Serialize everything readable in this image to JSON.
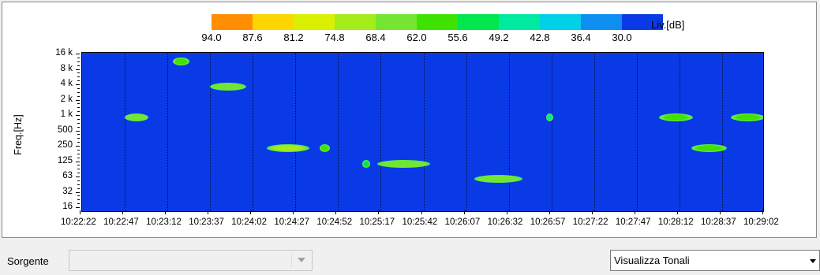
{
  "legend": {
    "unit": "Liv.[dB]",
    "labels": [
      "94.0",
      "87.6",
      "81.2",
      "74.8",
      "68.4",
      "62.0",
      "55.6",
      "49.2",
      "42.8",
      "36.4",
      "30.0"
    ],
    "colors": [
      "#ff8f00",
      "#ffd500",
      "#d9f000",
      "#a4ec1a",
      "#74e632",
      "#3fe300",
      "#00e64e",
      "#00e9a0",
      "#00d0e8",
      "#0d8ef0",
      "#0a3ae6"
    ]
  },
  "chart_data": {
    "type": "heatmap",
    "ylabel": "Freq.[Hz]",
    "y_ticks": [
      "16 k",
      "8 k",
      "4 k",
      "2 k",
      "1 k",
      "500",
      "250",
      "125",
      "63",
      "32",
      "16"
    ],
    "x_ticks": [
      "10:22:22",
      "10:22:47",
      "10:23:12",
      "10:23:37",
      "10:24:02",
      "10:24:27",
      "10:24:52",
      "10:25:17",
      "10:25:42",
      "10:26:07",
      "10:26:32",
      "10:26:57",
      "10:27:22",
      "10:27:47",
      "10:28:12",
      "10:28:37",
      "10:29:02"
    ],
    "tonal_events": [
      {
        "start": "10:22:47",
        "end": "10:23:01",
        "freq_hz": 1000,
        "peak_db": 68.4
      },
      {
        "start": "10:23:15",
        "end": "10:23:25",
        "freq_hz": 12500,
        "peak_db": 62.0
      },
      {
        "start": "10:23:37",
        "end": "10:23:58",
        "freq_hz": 4000,
        "peak_db": 68.4
      },
      {
        "start": "10:24:10",
        "end": "10:24:35",
        "freq_hz": 250,
        "peak_db": 74.8
      },
      {
        "start": "10:24:41",
        "end": "10:24:47",
        "freq_hz": 250,
        "peak_db": 62.0
      },
      {
        "start": "10:25:06",
        "end": "10:25:11",
        "freq_hz": 125,
        "peak_db": 55.6
      },
      {
        "start": "10:25:15",
        "end": "10:25:46",
        "freq_hz": 125,
        "peak_db": 68.4
      },
      {
        "start": "10:26:12",
        "end": "10:26:40",
        "freq_hz": 63,
        "peak_db": 68.4
      },
      {
        "start": "10:26:54",
        "end": "10:26:58",
        "freq_hz": 1000,
        "peak_db": 49.2
      },
      {
        "start": "10:28:00",
        "end": "10:28:20",
        "freq_hz": 1000,
        "peak_db": 62.0
      },
      {
        "start": "10:28:19",
        "end": "10:28:40",
        "freq_hz": 250,
        "peak_db": 62.0
      },
      {
        "start": "10:28:42",
        "end": "10:29:02",
        "freq_hz": 1000,
        "peak_db": 62.0
      }
    ]
  },
  "controls": {
    "source_label": "Sorgente",
    "source_value": "",
    "view_value": "Visualizza Tonali"
  }
}
